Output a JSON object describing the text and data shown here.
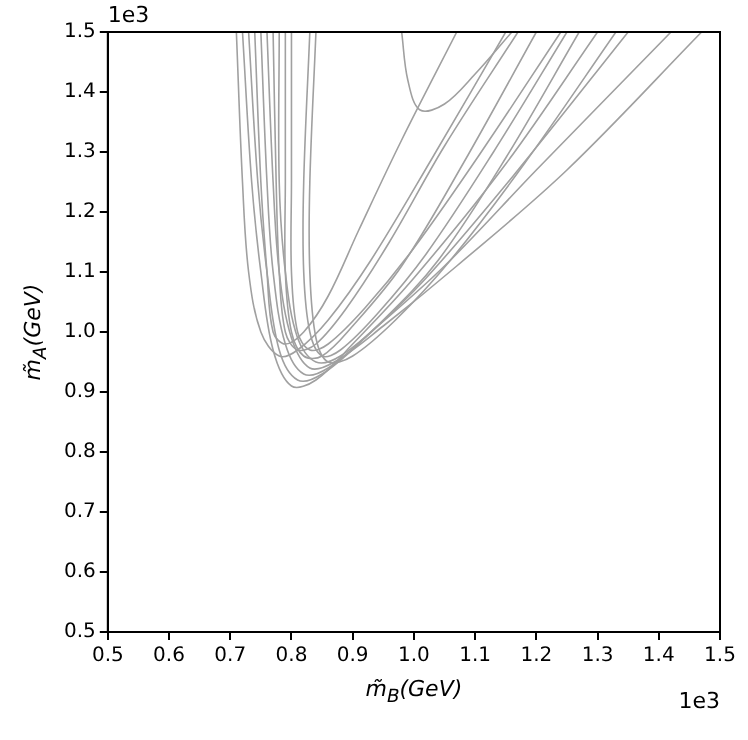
{
  "chart_data": {
    "type": "line",
    "xlabel": "m̃$_{B}$(GeV)",
    "ylabel": "m̃$_{A}$(GeV)",
    "annotations": [
      "1e3",
      "1e3"
    ],
    "xlim": [
      0.5,
      1.5
    ],
    "ylim": [
      0.5,
      1.5
    ],
    "xticks": [
      0.5,
      0.6,
      0.7,
      0.8,
      0.9,
      {
        "value": 1,
        "label": "1.0"
      },
      1.1,
      1.2,
      1.3,
      1.4,
      1.5
    ],
    "yticks": [
      0.5,
      0.6,
      0.7,
      0.8,
      0.9,
      {
        "value": 1,
        "label": "1.0"
      },
      1.1,
      1.2,
      1.3,
      1.4,
      1.5
    ],
    "grid": false,
    "legend": false,
    "marker": "none",
    "line_style": "solid",
    "series": [
      {
        "color": "#a0a0a0",
        "x": [
          0.72,
          0.735,
          0.75,
          0.77,
          0.8,
          0.84,
          0.9,
          1.0,
          1.15,
          1.3
        ],
        "values": [
          1.5,
          1.25,
          1.1,
          0.97,
          0.91,
          0.92,
          0.98,
          1.09,
          1.28,
          1.5
        ]
      },
      {
        "color": "#a0a0a0",
        "x": [
          0.73,
          0.745,
          0.76,
          0.78,
          0.81,
          0.85,
          0.92,
          1.02,
          1.17,
          1.35
        ],
        "values": [
          1.5,
          1.25,
          1.1,
          0.97,
          0.92,
          0.93,
          0.99,
          1.09,
          1.27,
          1.5
        ]
      },
      {
        "color": "#a0a0a0",
        "x": [
          0.75,
          0.76,
          0.77,
          0.79,
          0.82,
          0.86,
          0.93,
          1.05,
          1.2,
          1.42
        ],
        "values": [
          1.5,
          1.25,
          1.1,
          0.98,
          0.93,
          0.94,
          1.0,
          1.11,
          1.27,
          1.5
        ]
      },
      {
        "color": "#a0a0a0",
        "x": [
          0.76,
          0.77,
          0.78,
          0.8,
          0.83,
          0.87,
          0.95,
          1.07,
          1.25,
          1.47
        ],
        "values": [
          1.5,
          1.25,
          1.1,
          0.99,
          0.94,
          0.95,
          1.01,
          1.11,
          1.27,
          1.5
        ]
      },
      {
        "color": "#a0a0a0",
        "x": [
          0.79,
          0.79,
          0.79,
          0.8,
          0.82,
          0.85,
          0.9,
          0.98,
          1.08,
          1.2
        ],
        "values": [
          1.5,
          1.25,
          1.1,
          1.0,
          0.96,
          0.96,
          1.01,
          1.11,
          1.28,
          1.5
        ]
      },
      {
        "color": "#a0a0a0",
        "x": [
          0.71,
          0.72,
          0.73,
          0.75,
          0.78,
          0.81,
          0.86,
          0.93,
          1.03,
          1.15
        ],
        "values": [
          1.5,
          1.25,
          1.1,
          1.0,
          0.96,
          0.97,
          1.02,
          1.12,
          1.29,
          1.5
        ]
      },
      {
        "color": "#a0a0a0",
        "x": [
          0.78,
          0.78,
          0.79,
          0.81,
          0.84,
          0.88,
          0.95,
          1.04,
          1.15,
          1.27
        ],
        "values": [
          1.5,
          1.25,
          1.1,
          0.99,
          0.95,
          0.96,
          1.02,
          1.12,
          1.29,
          1.5
        ]
      },
      {
        "color": "#a0a0a0",
        "x": [
          0.8,
          0.8,
          0.8,
          0.81,
          0.83,
          0.86,
          0.92,
          1.0,
          1.11,
          1.24
        ],
        "values": [
          1.5,
          1.25,
          1.1,
          1.0,
          0.97,
          0.98,
          1.04,
          1.14,
          1.3,
          1.5
        ]
      },
      {
        "color": "#a0a0a0",
        "x": [
          0.83,
          0.82,
          0.82,
          0.83,
          0.85,
          0.88,
          0.94,
          1.02,
          1.13,
          1.25
        ],
        "values": [
          1.5,
          1.25,
          1.1,
          1.0,
          0.96,
          0.97,
          1.03,
          1.13,
          1.3,
          1.5
        ]
      },
      {
        "color": "#a0a0a0",
        "x": [
          0.77,
          0.775,
          0.78,
          0.79,
          0.81,
          0.84,
          0.89,
          0.96,
          1.05,
          1.17
        ],
        "values": [
          1.5,
          1.25,
          1.1,
          1.0,
          0.97,
          0.98,
          1.04,
          1.15,
          1.31,
          1.5
        ]
      },
      {
        "color": "#a0a0a0",
        "x": [
          0.74,
          0.75,
          0.76,
          0.77,
          0.79,
          0.82,
          0.86,
          0.91,
          0.98,
          1.07
        ],
        "values": [
          1.5,
          1.25,
          1.1,
          1.0,
          0.98,
          1.0,
          1.06,
          1.17,
          1.32,
          1.5
        ]
      },
      {
        "color": "#a0a0a0",
        "x": [
          0.84,
          0.83,
          0.83,
          0.84,
          0.86,
          0.9,
          0.97,
          1.06,
          1.18,
          1.33
        ],
        "values": [
          1.5,
          1.25,
          1.1,
          0.99,
          0.95,
          0.96,
          1.02,
          1.12,
          1.28,
          1.5
        ]
      },
      {
        "color": "#a0a0a0",
        "x": [
          0.98,
          0.99,
          1.01,
          1.05,
          1.1,
          1.16
        ],
        "values": [
          1.5,
          1.42,
          1.37,
          1.38,
          1.43,
          1.5
        ]
      }
    ]
  }
}
